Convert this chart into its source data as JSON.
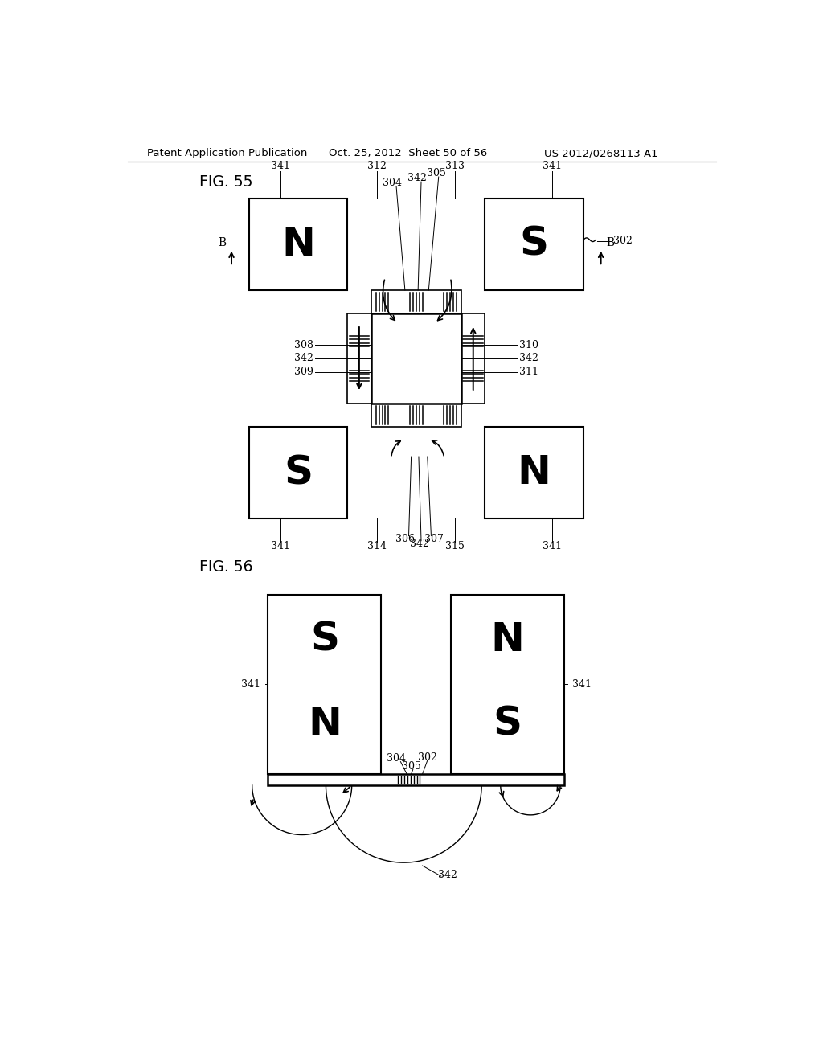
{
  "bg_color": "#ffffff",
  "header_text": "Patent Application Publication",
  "header_date": "Oct. 25, 2012  Sheet 50 of 56",
  "header_num": "US 2012/0268113 A1",
  "fig55_label": "FIG. 55",
  "fig56_label": "FIG. 56",
  "label_fs": 9.0,
  "fig_label_fs": 13.5,
  "ns_fs": 36,
  "header_fs": 9.5
}
